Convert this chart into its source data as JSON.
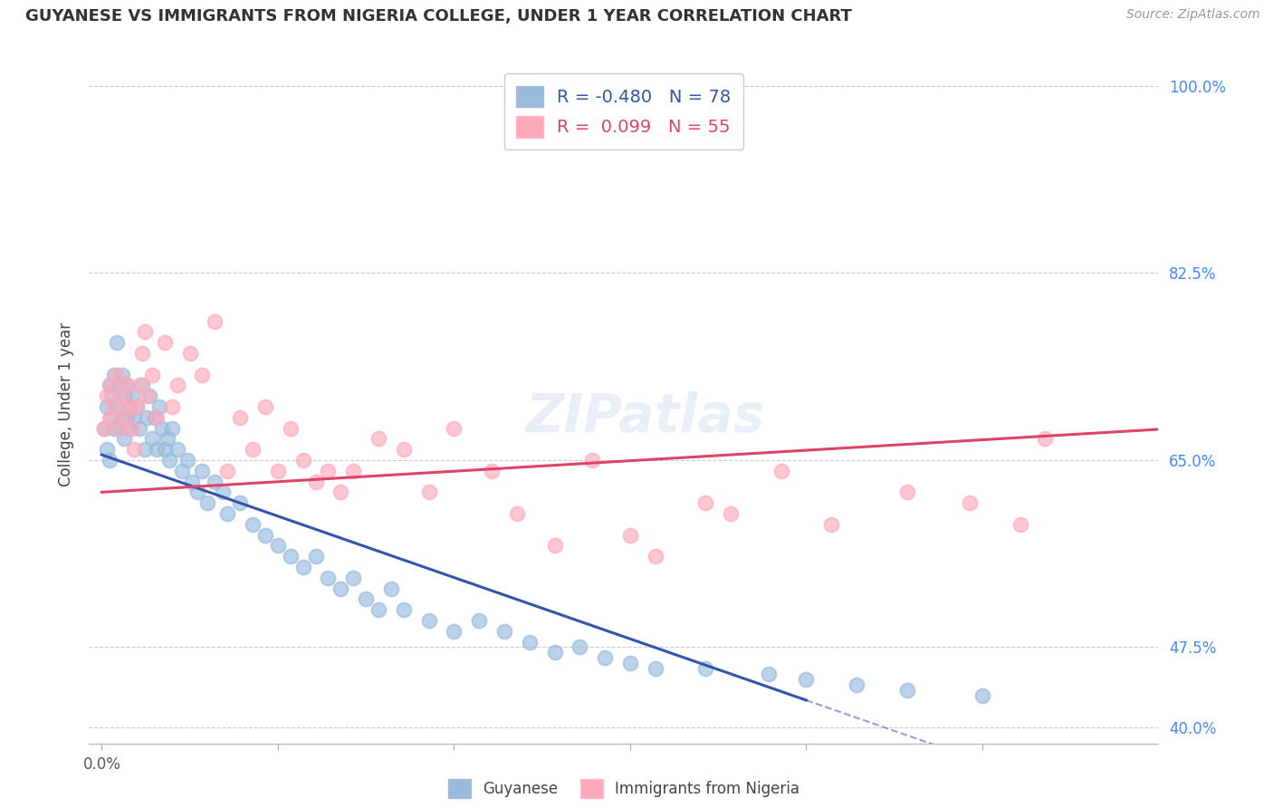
{
  "title": "GUYANESE VS IMMIGRANTS FROM NIGERIA COLLEGE, UNDER 1 YEAR CORRELATION CHART",
  "source": "Source: ZipAtlas.com",
  "ylabel": "College, Under 1 year",
  "xlim": [
    -0.005,
    0.42
  ],
  "ylim": [
    0.385,
    1.02
  ],
  "blue_color": "#99BBDD",
  "pink_color": "#FFAABB",
  "blue_line_color": "#3355AA",
  "pink_line_color": "#DD4466",
  "R_blue": -0.48,
  "N_blue": 78,
  "R_pink": 0.099,
  "N_pink": 55,
  "blue_intercept": 0.655,
  "blue_slope": -0.82,
  "pink_intercept": 0.62,
  "pink_slope": 0.14,
  "guyanese_x": [
    0.001,
    0.002,
    0.002,
    0.003,
    0.003,
    0.004,
    0.004,
    0.005,
    0.005,
    0.006,
    0.006,
    0.007,
    0.007,
    0.008,
    0.008,
    0.009,
    0.009,
    0.01,
    0.01,
    0.011,
    0.011,
    0.012,
    0.013,
    0.014,
    0.015,
    0.016,
    0.017,
    0.018,
    0.019,
    0.02,
    0.021,
    0.022,
    0.023,
    0.024,
    0.025,
    0.026,
    0.027,
    0.028,
    0.03,
    0.032,
    0.034,
    0.036,
    0.038,
    0.04,
    0.042,
    0.045,
    0.048,
    0.05,
    0.055,
    0.06,
    0.065,
    0.07,
    0.075,
    0.08,
    0.085,
    0.09,
    0.095,
    0.1,
    0.105,
    0.11,
    0.115,
    0.12,
    0.13,
    0.14,
    0.15,
    0.16,
    0.17,
    0.18,
    0.19,
    0.2,
    0.21,
    0.22,
    0.24,
    0.265,
    0.28,
    0.3,
    0.32,
    0.35
  ],
  "guyanese_y": [
    0.68,
    0.7,
    0.66,
    0.72,
    0.65,
    0.69,
    0.71,
    0.73,
    0.68,
    0.76,
    0.7,
    0.72,
    0.68,
    0.73,
    0.69,
    0.71,
    0.67,
    0.69,
    0.72,
    0.7,
    0.68,
    0.71,
    0.69,
    0.7,
    0.68,
    0.72,
    0.66,
    0.69,
    0.71,
    0.67,
    0.69,
    0.66,
    0.7,
    0.68,
    0.66,
    0.67,
    0.65,
    0.68,
    0.66,
    0.64,
    0.65,
    0.63,
    0.62,
    0.64,
    0.61,
    0.63,
    0.62,
    0.6,
    0.61,
    0.59,
    0.58,
    0.57,
    0.56,
    0.55,
    0.56,
    0.54,
    0.53,
    0.54,
    0.52,
    0.51,
    0.53,
    0.51,
    0.5,
    0.49,
    0.5,
    0.49,
    0.48,
    0.47,
    0.475,
    0.465,
    0.46,
    0.455,
    0.455,
    0.45,
    0.445,
    0.44,
    0.435,
    0.43
  ],
  "nigeria_x": [
    0.001,
    0.002,
    0.003,
    0.004,
    0.005,
    0.006,
    0.007,
    0.008,
    0.009,
    0.01,
    0.011,
    0.012,
    0.013,
    0.014,
    0.015,
    0.016,
    0.017,
    0.018,
    0.02,
    0.022,
    0.025,
    0.028,
    0.03,
    0.035,
    0.04,
    0.045,
    0.05,
    0.055,
    0.06,
    0.065,
    0.07,
    0.075,
    0.08,
    0.085,
    0.09,
    0.095,
    0.1,
    0.11,
    0.12,
    0.13,
    0.14,
    0.155,
    0.165,
    0.18,
    0.195,
    0.21,
    0.22,
    0.24,
    0.25,
    0.27,
    0.29,
    0.32,
    0.345,
    0.365,
    0.375
  ],
  "nigeria_y": [
    0.68,
    0.71,
    0.69,
    0.72,
    0.7,
    0.73,
    0.68,
    0.71,
    0.69,
    0.72,
    0.7,
    0.68,
    0.66,
    0.7,
    0.72,
    0.75,
    0.77,
    0.71,
    0.73,
    0.69,
    0.76,
    0.7,
    0.72,
    0.75,
    0.73,
    0.78,
    0.64,
    0.69,
    0.66,
    0.7,
    0.64,
    0.68,
    0.65,
    0.63,
    0.64,
    0.62,
    0.64,
    0.67,
    0.66,
    0.62,
    0.68,
    0.64,
    0.6,
    0.57,
    0.65,
    0.58,
    0.56,
    0.61,
    0.6,
    0.64,
    0.59,
    0.62,
    0.61,
    0.59,
    0.67
  ],
  "background_color": "#FFFFFF",
  "grid_color": "#CCCCCC",
  "watermark": "ZIPatlas",
  "ytick_positions": [
    0.4,
    0.475,
    0.65,
    0.825,
    1.0
  ],
  "ytick_labels": [
    "40.0%",
    "47.5%",
    "65.0%",
    "82.5%",
    "100.0%"
  ]
}
